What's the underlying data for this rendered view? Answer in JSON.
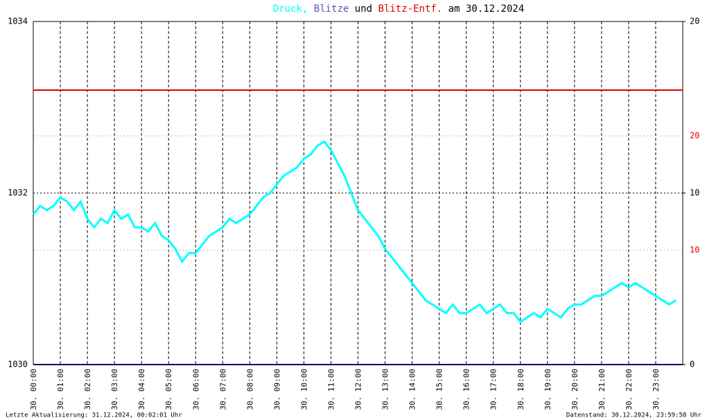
{
  "chart_data": {
    "type": "line",
    "title_parts": [
      ",",
      "und",
      "am 30.12.2024"
    ],
    "footer_left": "Letzte Aktualisierung: 31.12.2024, 00:02:01 Uhr",
    "footer_right": "Datenstand: 30.12.2024, 23:59:58 Uhr",
    "xlim": [
      0,
      24
    ],
    "xticks": [
      {
        "value": 0,
        "label": "30. 00:00"
      },
      {
        "value": 1,
        "label": "30. 01:00"
      },
      {
        "value": 2,
        "label": "30. 02:00"
      },
      {
        "value": 3,
        "label": "30. 03:00"
      },
      {
        "value": 4,
        "label": "30. 04:00"
      },
      {
        "value": 5,
        "label": "30. 05:00"
      },
      {
        "value": 6,
        "label": "30. 06:00"
      },
      {
        "value": 7,
        "label": "30. 07:00"
      },
      {
        "value": 8,
        "label": "30. 08:00"
      },
      {
        "value": 9,
        "label": "30. 09:00"
      },
      {
        "value": 10,
        "label": "30. 10:00"
      },
      {
        "value": 11,
        "label": "30. 11:00"
      },
      {
        "value": 12,
        "label": "30. 12:00"
      },
      {
        "value": 13,
        "label": "30. 13:00"
      },
      {
        "value": 14,
        "label": "30. 14:00"
      },
      {
        "value": 15,
        "label": "30. 15:00"
      },
      {
        "value": 16,
        "label": "30. 16:00"
      },
      {
        "value": 17,
        "label": "30. 17:00"
      },
      {
        "value": 18,
        "label": "30. 18:00"
      },
      {
        "value": 19,
        "label": "30. 19:00"
      },
      {
        "value": 20,
        "label": "30. 20:00"
      },
      {
        "value": 21,
        "label": "30. 21:00"
      },
      {
        "value": 22,
        "label": "30. 22:00"
      },
      {
        "value": 23,
        "label": "30. 23:00"
      }
    ],
    "ylim": [
      1030,
      1034
    ],
    "yticks": [
      1030,
      1032,
      1034
    ],
    "y2lim": [
      0,
      20
    ],
    "y2ticks": [
      0,
      10,
      20
    ],
    "y3lim": [
      0,
      30
    ],
    "y3ticks": [
      10,
      20
    ],
    "y3color": "#dd0000",
    "grid": true,
    "series": [
      {
        "name": "Druck",
        "color": "#00ffff",
        "axis": "y",
        "x": [
          0,
          0.25,
          0.5,
          0.75,
          1,
          1.25,
          1.5,
          1.75,
          2,
          2.25,
          2.5,
          2.75,
          3,
          3.25,
          3.5,
          3.75,
          4,
          4.25,
          4.5,
          4.75,
          5,
          5.25,
          5.5,
          5.75,
          6,
          6.25,
          6.5,
          6.75,
          7,
          7.25,
          7.5,
          7.75,
          8,
          8.25,
          8.5,
          8.75,
          9,
          9.25,
          9.5,
          9.75,
          10,
          10.25,
          10.5,
          10.75,
          11,
          11.25,
          11.5,
          11.75,
          12,
          12.25,
          12.5,
          12.75,
          13,
          13.25,
          13.5,
          13.75,
          14,
          14.25,
          14.5,
          14.75,
          15,
          15.25,
          15.5,
          15.75,
          16,
          16.25,
          16.5,
          16.75,
          17,
          17.25,
          17.5,
          17.75,
          18,
          18.25,
          18.5,
          18.75,
          19,
          19.25,
          19.5,
          19.75,
          20,
          20.25,
          20.5,
          20.75,
          21,
          21.25,
          21.5,
          21.75,
          22,
          22.25,
          22.5,
          22.75,
          23,
          23.25,
          23.5,
          23.75
        ],
        "values": [
          1031.75,
          1031.85,
          1031.8,
          1031.85,
          1031.95,
          1031.9,
          1031.8,
          1031.9,
          1031.7,
          1031.6,
          1031.7,
          1031.65,
          1031.8,
          1031.7,
          1031.75,
          1031.6,
          1031.6,
          1031.55,
          1031.65,
          1031.5,
          1031.45,
          1031.35,
          1031.2,
          1031.3,
          1031.3,
          1031.4,
          1031.5,
          1031.55,
          1031.6,
          1031.7,
          1031.65,
          1031.7,
          1031.75,
          1031.85,
          1031.95,
          1032.0,
          1032.1,
          1032.2,
          1032.25,
          1032.3,
          1032.4,
          1032.45,
          1032.55,
          1032.6,
          1032.5,
          1032.35,
          1032.2,
          1032.0,
          1031.8,
          1031.7,
          1031.6,
          1031.5,
          1031.35,
          1031.25,
          1031.15,
          1031.05,
          1030.95,
          1030.85,
          1030.75,
          1030.7,
          1030.65,
          1030.6,
          1030.7,
          1030.6,
          1030.6,
          1030.65,
          1030.7,
          1030.6,
          1030.65,
          1030.7,
          1030.6,
          1030.6,
          1030.5,
          1030.55,
          1030.6,
          1030.55,
          1030.65,
          1030.6,
          1030.55,
          1030.65,
          1030.7,
          1030.7,
          1030.75,
          1030.8,
          1030.8,
          1030.85,
          1030.9,
          1030.95,
          1030.9,
          1030.95,
          1030.9,
          1030.85,
          1030.8,
          1030.75,
          1030.7,
          1030.75
        ]
      },
      {
        "name": "Blitze",
        "color": "#5555bb",
        "line_color": "#000066",
        "axis": "y2",
        "x": [
          0,
          24
        ],
        "values": [
          0,
          0
        ]
      },
      {
        "name": "Blitz-Entf.",
        "color": "#dd0000",
        "axis": "y3",
        "x": [
          0,
          24
        ],
        "values": [
          24,
          24
        ]
      }
    ]
  }
}
